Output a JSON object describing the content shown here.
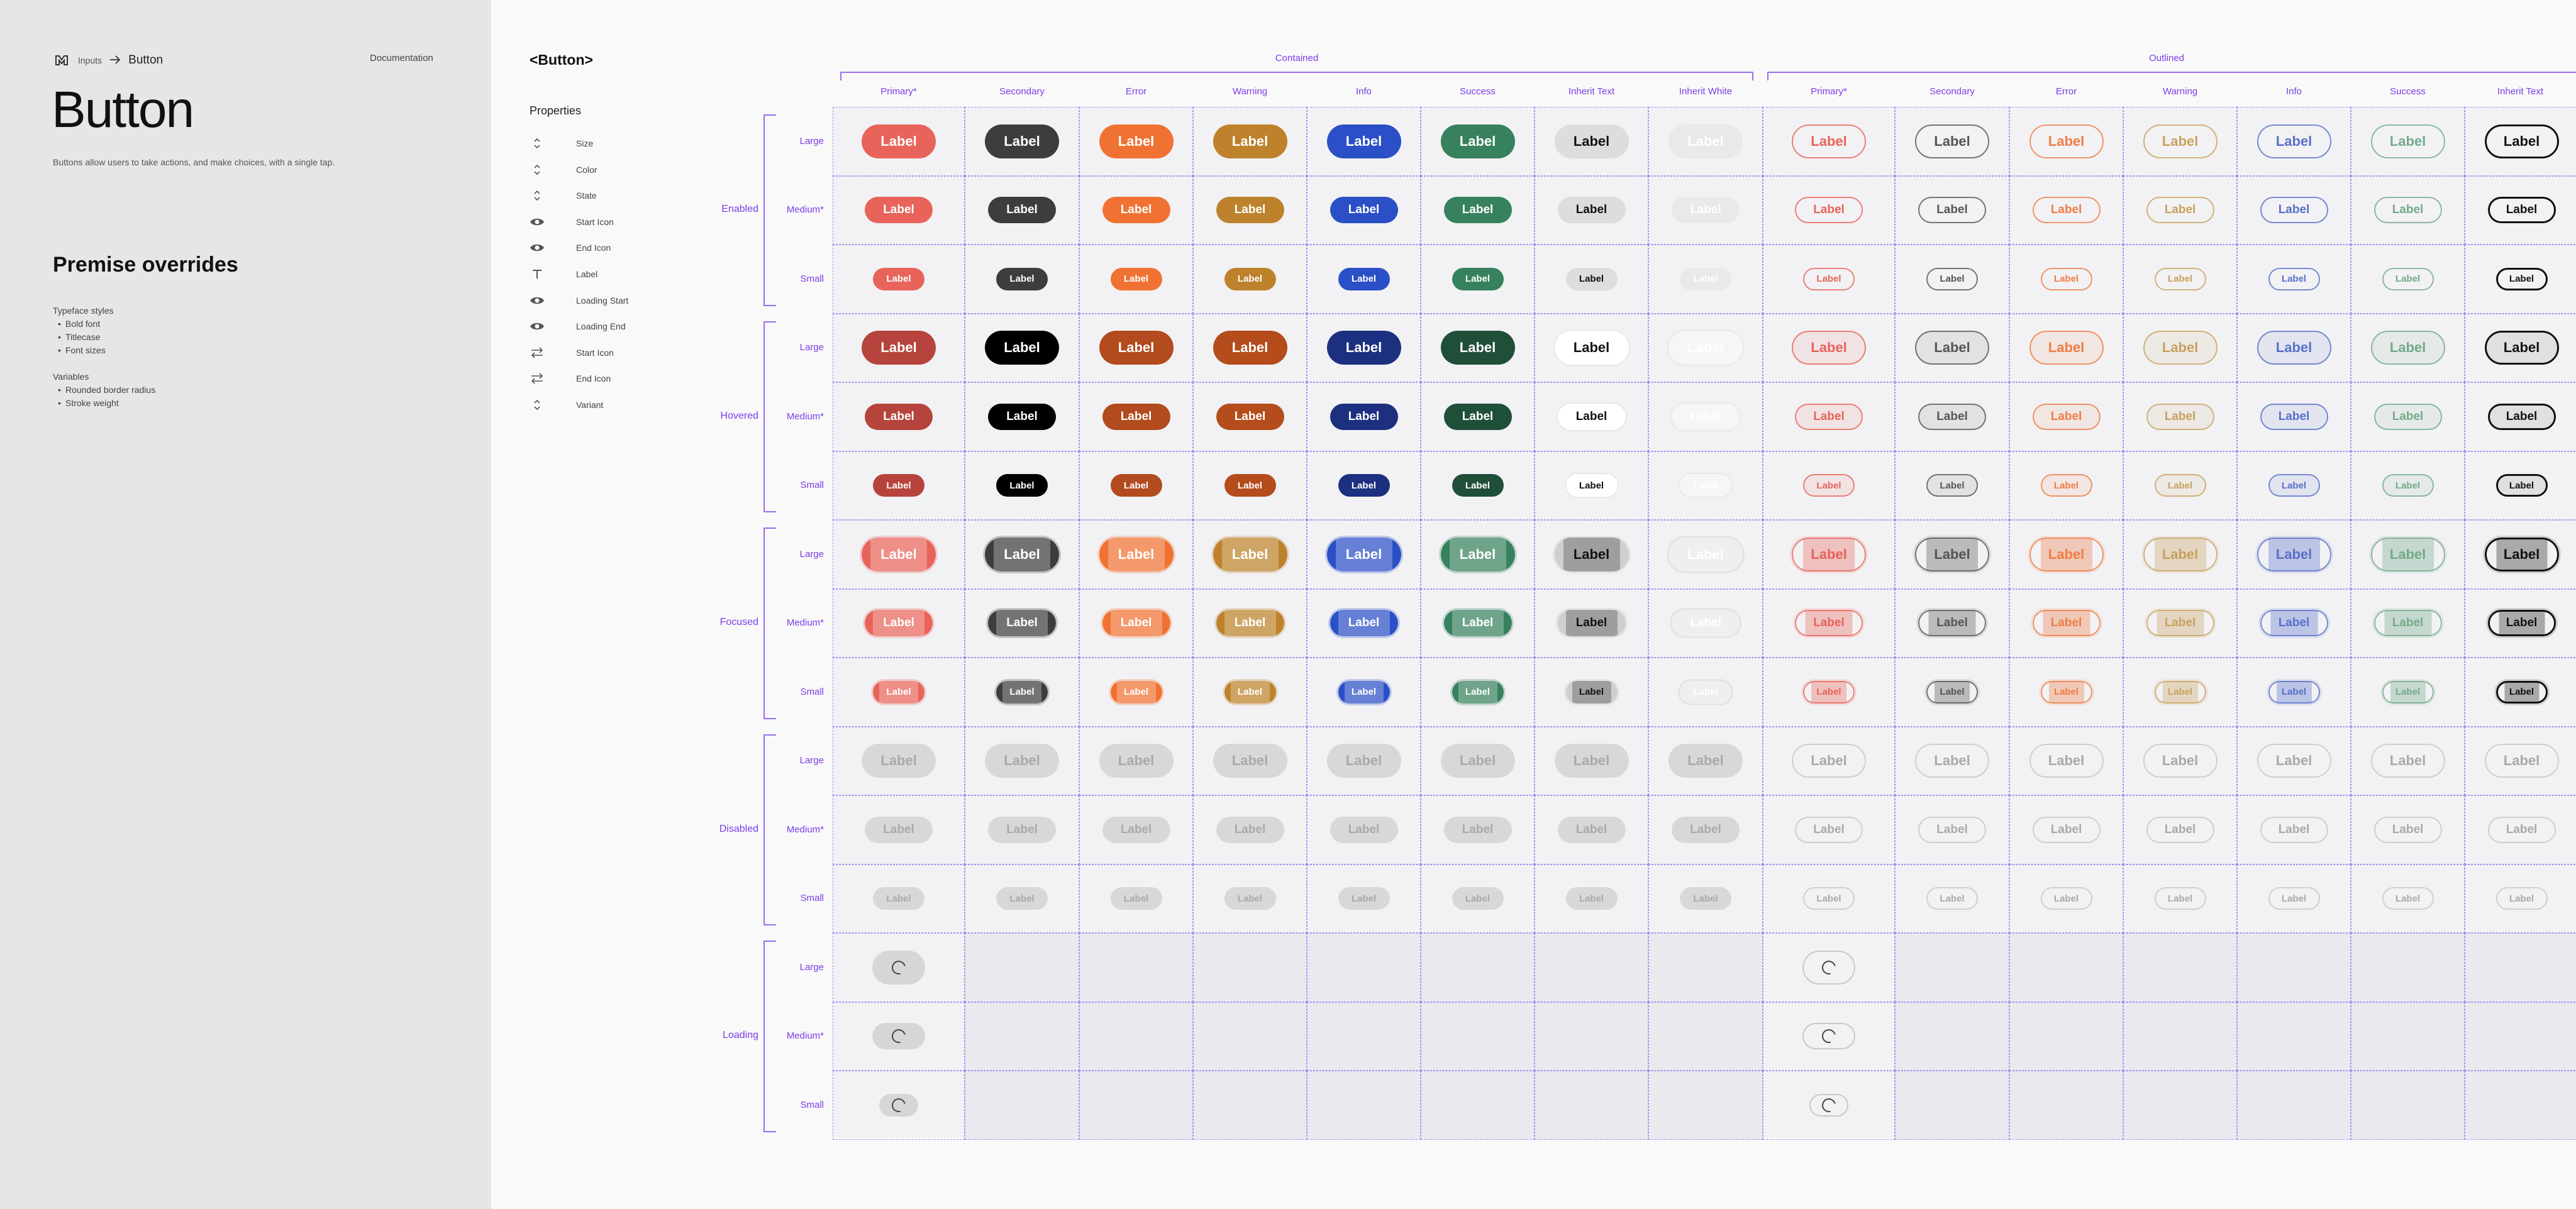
{
  "breadcrumb": {
    "parent": "Inputs",
    "current": "Button"
  },
  "doc_link": "Documentation",
  "page_title": "Button",
  "description": "Buttons allow users to take actions, and make choices, with a single tap.",
  "premise": {
    "title": "Premise overrides",
    "groups": [
      {
        "title": "Typeface styles",
        "items": [
          "Bold font",
          "Titlecase",
          "Font sizes"
        ]
      },
      {
        "title": "Variables",
        "items": [
          "Rounded border radius",
          "Stroke weight"
        ]
      }
    ]
  },
  "component": {
    "title": "<Button>",
    "properties_title": "Properties"
  },
  "properties": [
    {
      "label": "Size",
      "icon": "chevron-up-down-icon"
    },
    {
      "label": "Color",
      "icon": "chevron-up-down-icon"
    },
    {
      "label": "State",
      "icon": "chevron-up-down-icon"
    },
    {
      "label": "Start Icon",
      "icon": "eye-icon"
    },
    {
      "label": "End Icon",
      "icon": "eye-icon"
    },
    {
      "label": "Label",
      "icon": "text-icon"
    },
    {
      "label": "Loading Start",
      "icon": "eye-icon"
    },
    {
      "label": "Loading End",
      "icon": "eye-icon"
    },
    {
      "label": "Start Icon",
      "icon": "swap-icon"
    },
    {
      "label": "End Icon",
      "icon": "swap-icon"
    },
    {
      "label": "Variant",
      "icon": "chevron-up-down-icon"
    }
  ],
  "matrix": {
    "button_label": "Label",
    "variants": [
      {
        "name": "Contained",
        "columns": [
          "Primary*",
          "Secondary",
          "Error",
          "Warning",
          "Info",
          "Success",
          "Inherit Text",
          "Inherit White"
        ]
      },
      {
        "name": "Outlined",
        "columns": [
          "Primary*",
          "Secondary",
          "Error",
          "Warning",
          "Info",
          "Success",
          "Inherit Text"
        ]
      }
    ],
    "states": [
      "Enabled",
      "Hovered",
      "Focused",
      "Disabled",
      "Loading"
    ],
    "sizes": [
      "Large",
      "Medium*",
      "Small"
    ],
    "colors": {
      "contained": [
        "#e8635a",
        "#3d3d3d",
        "#f07232",
        "#bd822b",
        "#2a4fc6",
        "#37815e",
        "#dddddd",
        "#e9e9e9"
      ],
      "contained_hover": [
        "#b6443c",
        "#000000",
        "#b24b1d",
        "#b44c1b",
        "#1d3080",
        "#1f4e39",
        "#ffffff",
        "#f6f6f6"
      ],
      "outlined": [
        "#e8635a",
        "#555555",
        "#ef7c45",
        "#c8a15e",
        "#5870c9",
        "#73a989",
        "#111111"
      ],
      "accent": "#7b3ee8",
      "disabled_bg": "#d8d8d8",
      "disabled_text": "#a9a9a9"
    }
  }
}
